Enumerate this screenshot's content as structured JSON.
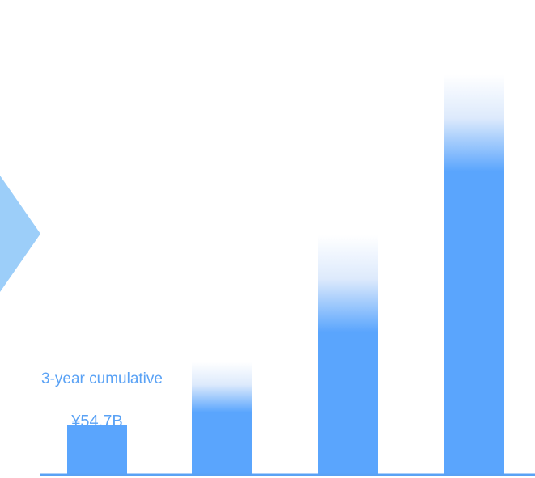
{
  "chart_data": {
    "type": "bar",
    "categories": [
      "",
      "",
      "",
      ""
    ],
    "values": [
      1,
      2.3,
      4.9,
      8.2
    ],
    "ylim": [
      0,
      8.5
    ],
    "grid": false,
    "legend": "none",
    "annotation": {
      "label": "3-year cumulative",
      "value": "¥54.7B",
      "bar_index": 0
    }
  },
  "colors": {
    "bar": "#5aa5fd",
    "bar_fade": "#ddeafc",
    "axis": "#5aa2f5",
    "annotation_text": "#5aa2f5",
    "arrow": "#9ccef9"
  },
  "icons": {
    "arrow": "chevron-right-icon"
  }
}
